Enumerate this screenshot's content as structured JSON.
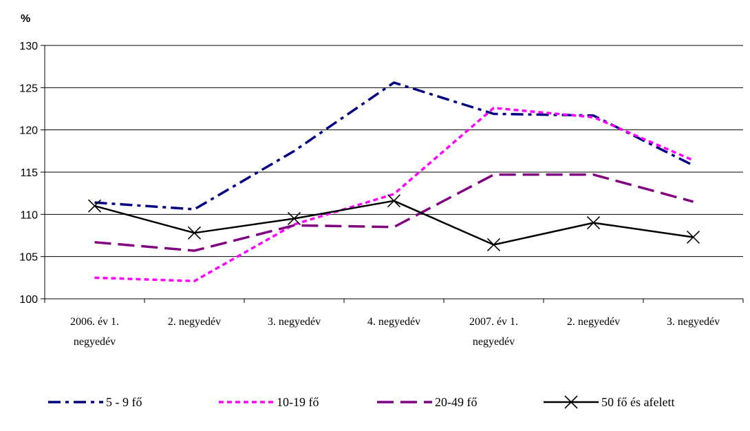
{
  "chart_data": {
    "type": "line",
    "ylabel": "%",
    "ylim": [
      100,
      130
    ],
    "yticks": [
      100,
      105,
      110,
      115,
      120,
      125,
      130
    ],
    "grid": true,
    "legend_position": "bottom",
    "categories": [
      [
        "2006. év 1.",
        "negyedév"
      ],
      [
        "2. negyedév"
      ],
      [
        "3. negyedév"
      ],
      [
        "4. negyedév"
      ],
      [
        "2007. év 1.",
        "negyedév"
      ],
      [
        "2. negyedév"
      ],
      [
        "3. negyedév"
      ]
    ],
    "series": [
      {
        "name": "5 - 9 fő",
        "values": [
          111.4,
          110.6,
          117.5,
          125.6,
          121.9,
          121.7,
          115.8
        ],
        "color": "#000080",
        "style": "dash-dot"
      },
      {
        "name": "10-19 fő",
        "values": [
          102.5,
          102.1,
          108.8,
          112.4,
          122.6,
          121.5,
          116.4
        ],
        "color": "#ff00ff",
        "style": "dotted"
      },
      {
        "name": "20-49 fő",
        "values": [
          106.7,
          105.7,
          108.7,
          108.5,
          114.7,
          114.7,
          111.5
        ],
        "color": "#800080",
        "style": "long-dash"
      },
      {
        "name": "50 fő és afelett",
        "values": [
          111.0,
          107.8,
          109.5,
          111.6,
          106.4,
          109.0,
          107.3
        ],
        "color": "#000000",
        "style": "solid-x"
      }
    ]
  }
}
